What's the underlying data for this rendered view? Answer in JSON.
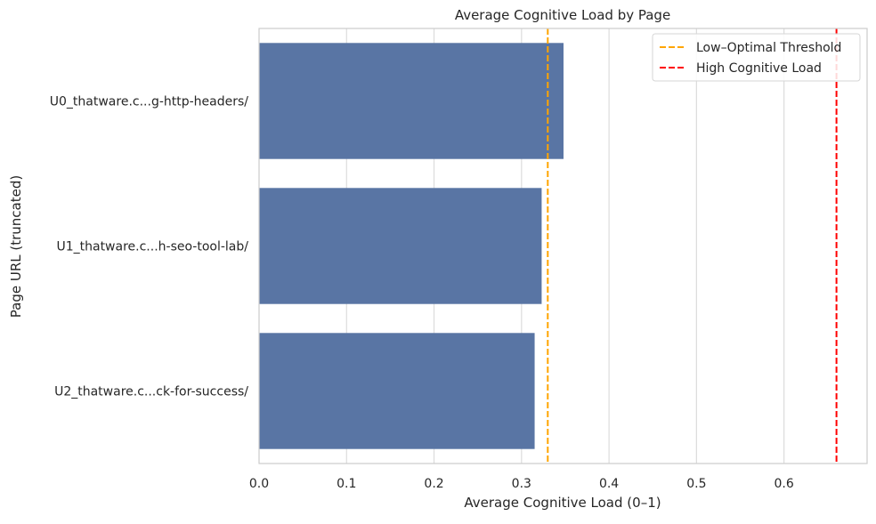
{
  "chart_data": {
    "type": "bar",
    "orientation": "horizontal",
    "title": "Average Cognitive Load by Page",
    "xlabel": "Average Cognitive Load (0–1)",
    "ylabel": "Page URL (truncated)",
    "categories": [
      "U0_thatware.c...g-http-headers/",
      "U1_thatware.c...h-seo-tool-lab/",
      "U2_thatware.c...ck-for-success/"
    ],
    "values": [
      0.348,
      0.323,
      0.315
    ],
    "xlim": [
      0,
      0.695
    ],
    "xticks": [
      "0.0",
      "0.1",
      "0.2",
      "0.3",
      "0.4",
      "0.5",
      "0.6"
    ],
    "xtick_values": [
      0,
      0.1,
      0.2,
      0.3,
      0.4,
      0.5,
      0.6
    ],
    "grid": "vertical",
    "bar_color": "#5975a4",
    "reference_lines": [
      {
        "name": "Low–Optimal Threshold",
        "value": 0.33,
        "color": "#ffa500",
        "style": "dashed"
      },
      {
        "name": "High Cognitive Load",
        "value": 0.66,
        "color": "#ff0000",
        "style": "dashed"
      }
    ],
    "legend_position": "top-right"
  }
}
